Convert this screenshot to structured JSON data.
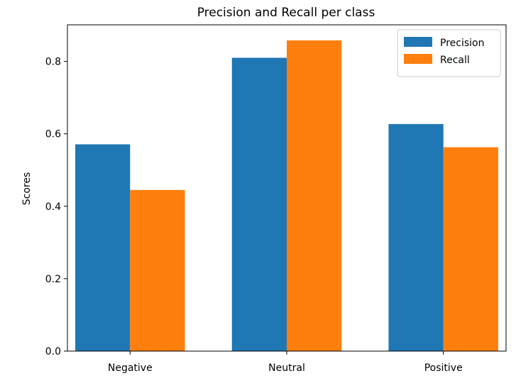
{
  "chart_data": {
    "type": "bar",
    "title": "Precision and Recall per class",
    "xlabel": "",
    "ylabel": "Scores",
    "categories": [
      "Negative",
      "Neutral",
      "Positive"
    ],
    "series": [
      {
        "name": "Precision",
        "values": [
          0.571,
          0.81,
          0.627
        ],
        "color": "#1f77b4"
      },
      {
        "name": "Recall",
        "values": [
          0.445,
          0.858,
          0.563
        ],
        "color": "#ff7f0e"
      }
    ],
    "yticks": [
      0.0,
      0.2,
      0.4,
      0.6,
      0.8
    ],
    "ytick_labels": [
      "0.0",
      "0.2",
      "0.4",
      "0.6",
      "0.8"
    ],
    "ylim": [
      0,
      0.901
    ],
    "grid": false,
    "legend_position": "top-right"
  }
}
